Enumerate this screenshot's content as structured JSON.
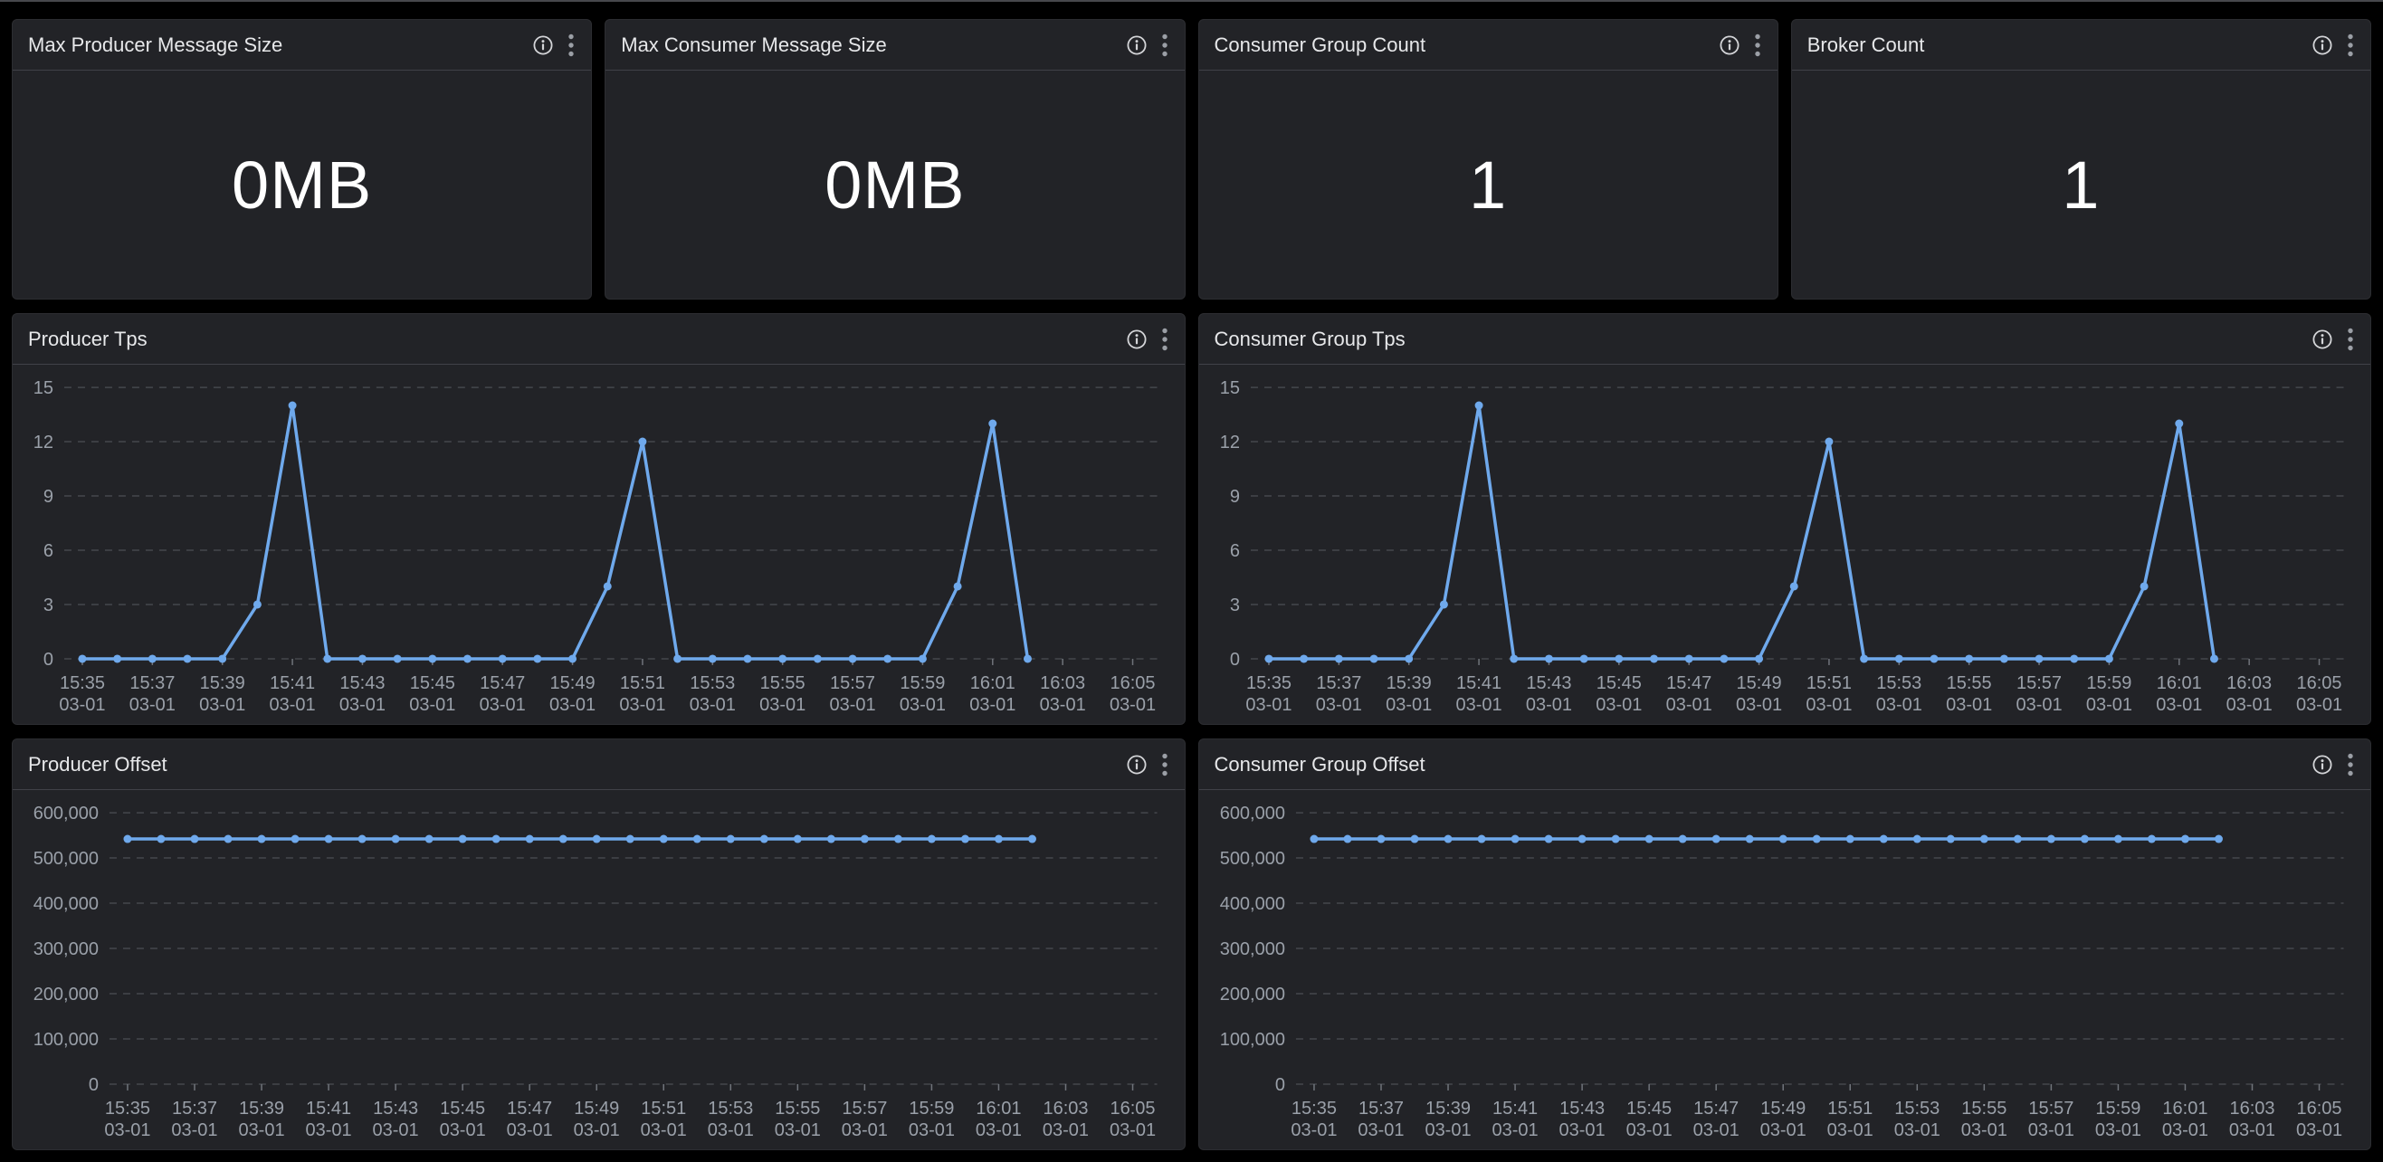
{
  "page": {
    "background": "#000000",
    "panel_background": "#222327",
    "panel_border": "#2c2d31",
    "header_divider": "#404148",
    "title_color": "#e7e8ea",
    "axis_label_color": "#9aa0a9",
    "gridline_color": "#45474d",
    "accent_line_color": "#6FA9EC",
    "header_icons": [
      "info-icon",
      "kebab-menu-icon"
    ]
  },
  "stat_panels": [
    {
      "title": "Max Producer Message Size",
      "value": "0MB"
    },
    {
      "title": "Max Consumer Message Size",
      "value": "0MB"
    },
    {
      "title": "Consumer Group Count",
      "value": "1"
    },
    {
      "title": "Broker Count",
      "value": "1"
    }
  ],
  "chart_data": [
    {
      "type": "line",
      "title": "Producer Tps",
      "x": [
        "15:35",
        "15:36",
        "15:37",
        "15:38",
        "15:39",
        "15:40",
        "15:41",
        "15:42",
        "15:43",
        "15:44",
        "15:45",
        "15:46",
        "15:47",
        "15:48",
        "15:49",
        "15:50",
        "15:51",
        "15:52",
        "15:53",
        "15:54",
        "15:55",
        "15:56",
        "15:57",
        "15:58",
        "15:59",
        "16:00",
        "16:01",
        "16:02"
      ],
      "values": [
        0,
        0,
        0,
        0,
        0,
        3,
        14,
        0,
        0,
        0,
        0,
        0,
        0,
        0,
        0,
        4,
        12,
        0,
        0,
        0,
        0,
        0,
        0,
        0,
        0,
        4,
        13,
        0
      ],
      "ylim": [
        0,
        15
      ],
      "ytick_step": 3,
      "yticks": [
        0,
        3,
        6,
        9,
        12,
        15
      ],
      "x_axis_labels": [
        "15:35",
        "15:37",
        "15:39",
        "15:41",
        "15:43",
        "15:45",
        "15:47",
        "15:49",
        "15:51",
        "15:53",
        "15:55",
        "15:57",
        "15:59",
        "16:01",
        "16:03",
        "16:05"
      ],
      "date_label": "03-01",
      "x_total_minutes": 30,
      "grid": "horizontal-dashed",
      "legend": "none",
      "line_color": "#6FA9EC"
    },
    {
      "type": "line",
      "title": "Consumer Group Tps",
      "x": [
        "15:35",
        "15:36",
        "15:37",
        "15:38",
        "15:39",
        "15:40",
        "15:41",
        "15:42",
        "15:43",
        "15:44",
        "15:45",
        "15:46",
        "15:47",
        "15:48",
        "15:49",
        "15:50",
        "15:51",
        "15:52",
        "15:53",
        "15:54",
        "15:55",
        "15:56",
        "15:57",
        "15:58",
        "15:59",
        "16:00",
        "16:01",
        "16:02"
      ],
      "values": [
        0,
        0,
        0,
        0,
        0,
        3,
        14,
        0,
        0,
        0,
        0,
        0,
        0,
        0,
        0,
        4,
        12,
        0,
        0,
        0,
        0,
        0,
        0,
        0,
        0,
        4,
        13,
        0
      ],
      "ylim": [
        0,
        15
      ],
      "ytick_step": 3,
      "yticks": [
        0,
        3,
        6,
        9,
        12,
        15
      ],
      "x_axis_labels": [
        "15:35",
        "15:37",
        "15:39",
        "15:41",
        "15:43",
        "15:45",
        "15:47",
        "15:49",
        "15:51",
        "15:53",
        "15:55",
        "15:57",
        "15:59",
        "16:01",
        "16:03",
        "16:05"
      ],
      "date_label": "03-01",
      "x_total_minutes": 30,
      "grid": "horizontal-dashed",
      "legend": "none",
      "line_color": "#6FA9EC"
    },
    {
      "type": "line",
      "title": "Producer Offset",
      "x": [
        "15:35",
        "15:36",
        "15:37",
        "15:38",
        "15:39",
        "15:40",
        "15:41",
        "15:42",
        "15:43",
        "15:44",
        "15:45",
        "15:46",
        "15:47",
        "15:48",
        "15:49",
        "15:50",
        "15:51",
        "15:52",
        "15:53",
        "15:54",
        "15:55",
        "15:56",
        "15:57",
        "15:58",
        "15:59",
        "16:00",
        "16:01",
        "16:02"
      ],
      "values": [
        542000,
        542000,
        542000,
        542000,
        542000,
        542000,
        542000,
        542000,
        542000,
        542000,
        542000,
        542000,
        542000,
        542000,
        542000,
        542000,
        542000,
        542000,
        542000,
        542000,
        542000,
        542000,
        542000,
        542000,
        542000,
        542000,
        542000,
        542000
      ],
      "ylim": [
        0,
        600000
      ],
      "ytick_step": 100000,
      "yticks": [
        0,
        100000,
        200000,
        300000,
        400000,
        500000,
        600000
      ],
      "x_axis_labels": [
        "15:35",
        "15:37",
        "15:39",
        "15:41",
        "15:43",
        "15:45",
        "15:47",
        "15:49",
        "15:51",
        "15:53",
        "15:55",
        "15:57",
        "15:59",
        "16:01",
        "16:03",
        "16:05"
      ],
      "date_label": "03-01",
      "x_total_minutes": 30,
      "grid": "horizontal-dashed",
      "legend": "none",
      "line_color": "#6FA9EC"
    },
    {
      "type": "line",
      "title": "Consumer Group Offset",
      "x": [
        "15:35",
        "15:36",
        "15:37",
        "15:38",
        "15:39",
        "15:40",
        "15:41",
        "15:42",
        "15:43",
        "15:44",
        "15:45",
        "15:46",
        "15:47",
        "15:48",
        "15:49",
        "15:50",
        "15:51",
        "15:52",
        "15:53",
        "15:54",
        "15:55",
        "15:56",
        "15:57",
        "15:58",
        "15:59",
        "16:00",
        "16:01",
        "16:02"
      ],
      "values": [
        542000,
        542000,
        542000,
        542000,
        542000,
        542000,
        542000,
        542000,
        542000,
        542000,
        542000,
        542000,
        542000,
        542000,
        542000,
        542000,
        542000,
        542000,
        542000,
        542000,
        542000,
        542000,
        542000,
        542000,
        542000,
        542000,
        542000,
        542000
      ],
      "ylim": [
        0,
        600000
      ],
      "ytick_step": 100000,
      "yticks": [
        0,
        100000,
        200000,
        300000,
        400000,
        500000,
        600000
      ],
      "x_axis_labels": [
        "15:35",
        "15:37",
        "15:39",
        "15:41",
        "15:43",
        "15:45",
        "15:47",
        "15:49",
        "15:51",
        "15:53",
        "15:55",
        "15:57",
        "15:59",
        "16:01",
        "16:03",
        "16:05"
      ],
      "date_label": "03-01",
      "x_total_minutes": 30,
      "grid": "horizontal-dashed",
      "legend": "none",
      "line_color": "#6FA9EC"
    }
  ]
}
